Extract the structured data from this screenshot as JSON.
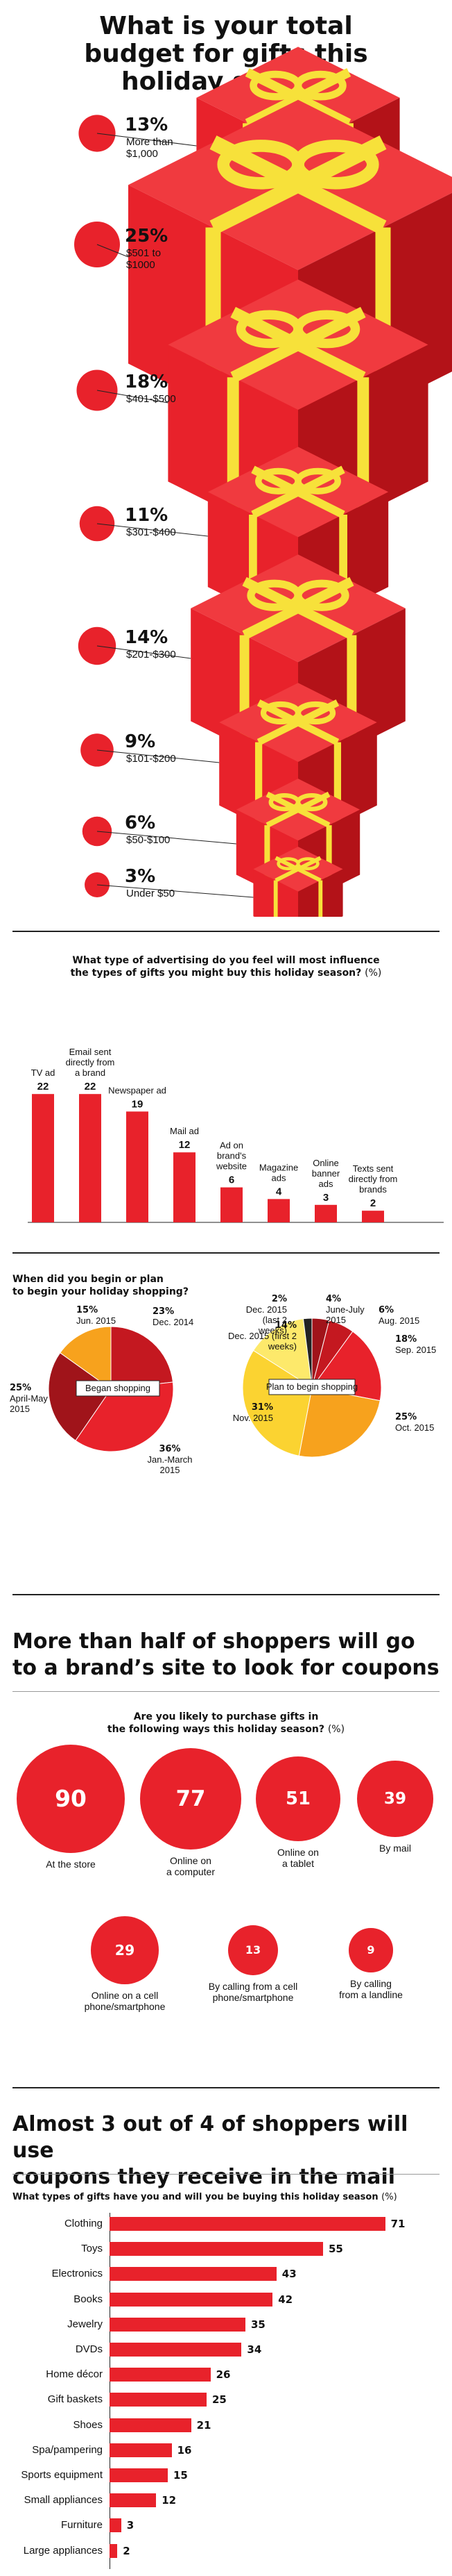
{
  "section1": {
    "title_lines": [
      "What is your total",
      "budget for gifts this",
      "holiday season"
    ]
  },
  "colors": {
    "red": "#e8222b",
    "dark_red": "#b31218",
    "ribbon": "#f7e13a",
    "orange": "#f7a21d",
    "yellow": "#fbd331"
  },
  "chart_data": [
    {
      "type": "bar",
      "variant": "bubble-list",
      "title": "What is your total budget for gifts this holiday season",
      "categories": [
        "More than $1,000",
        "$501 to $1000",
        "$401-$500",
        "$301-$400",
        "$201-$300",
        "$101-$200",
        "$50-$100",
        "Under $50"
      ],
      "values": [
        13,
        25,
        18,
        11,
        14,
        9,
        6,
        3
      ],
      "value_labels": [
        "13%",
        "25%",
        "18%",
        "11%",
        "14%",
        "9%",
        "6%",
        "3%"
      ],
      "sublabels": [
        [
          "More than",
          "$1,000"
        ],
        [
          "$501 to",
          "$1000"
        ],
        [
          "$401-$500"
        ],
        [
          "$301-$400"
        ],
        [
          "$201-$300"
        ],
        [
          "$101-$200"
        ],
        [
          "$50-$100"
        ],
        [
          "Under $50"
        ]
      ]
    },
    {
      "type": "bar",
      "title_lines": [
        "What type of advertising do you feel will most influence",
        "the types of gifts you might buy this holiday season?"
      ],
      "unit": "(%)",
      "categories": [
        "TV ad",
        "Email sent directly from a brand",
        "Newspaper ad",
        "Mail ad",
        "Ad on brand's website",
        "Magazine ads",
        "Online banner ads",
        "Texts sent directly from brands"
      ],
      "category_lines": [
        [
          "TV ad"
        ],
        [
          "Email sent",
          "directly from",
          "a brand"
        ],
        [
          "Newspaper ad"
        ],
        [
          "Mail ad"
        ],
        [
          "Ad on",
          "brand's",
          "website"
        ],
        [
          "Magazine",
          "ads"
        ],
        [
          "Online",
          "banner",
          "ads"
        ],
        [
          "Texts sent",
          "directly from",
          "brands"
        ]
      ],
      "values": [
        22,
        22,
        19,
        12,
        6,
        4,
        3,
        2
      ]
    },
    {
      "type": "pie",
      "title_lines": [
        "When did you begin or plan",
        "to begin your holiday shopping?"
      ],
      "center_label": "Began shopping",
      "slices": [
        {
          "label": "Dec. 2014",
          "value": 23,
          "text": "23%"
        },
        {
          "label": "Jan.-March 2015",
          "value": 36,
          "text": "36%"
        },
        {
          "label": "April-May 2015",
          "value": 25,
          "text": "25%"
        },
        {
          "label": "Jun. 2015",
          "value": 15,
          "text": "15%"
        }
      ]
    },
    {
      "type": "pie",
      "center_label": "Plan to begin shopping",
      "slices": [
        {
          "label": "June-July 2015",
          "value": 4,
          "text": "4%"
        },
        {
          "label": "Aug. 2015",
          "value": 6,
          "text": "6%"
        },
        {
          "label": "Sep. 2015",
          "value": 18,
          "text": "18%"
        },
        {
          "label": "Oct. 2015",
          "value": 25,
          "text": "25%"
        },
        {
          "label": "Nov. 2015",
          "value": 31,
          "text": "31%"
        },
        {
          "label": "Dec. 2015 (first 2 weeks)",
          "value": 14,
          "text": "14%"
        },
        {
          "label": "Dec. 2015 (last 2 weeks)",
          "value": 2,
          "text": "2%"
        }
      ]
    },
    {
      "type": "bar",
      "variant": "bubbles",
      "title_lines": [
        "Are you likely to purchase gifts in",
        "the following ways this holiday season?"
      ],
      "unit": "(%)",
      "categories": [
        "At the store",
        "Online on a computer",
        "Online on a tablet",
        "By mail",
        "Online on a cell phone/smartphone",
        "By calling from a cell phone/smartphone",
        "By calling from a landline"
      ],
      "category_lines": [
        [
          "At the store"
        ],
        [
          "Online on",
          "a computer"
        ],
        [
          "Online on",
          "a tablet"
        ],
        [
          "By mail"
        ],
        [
          "Online on a cell",
          "phone/smartphone"
        ],
        [
          "By calling from a cell",
          "phone/smartphone"
        ],
        [
          "By calling",
          "from a landline"
        ]
      ],
      "values": [
        90,
        77,
        51,
        39,
        29,
        13,
        9
      ]
    },
    {
      "type": "bar",
      "orientation": "horizontal",
      "title": "What types of gifts have you and will you be buying this holiday season",
      "unit": "(%)",
      "categories": [
        "Clothing",
        "Toys",
        "Electronics",
        "Books",
        "Jewelry",
        "DVDs",
        "Home décor",
        "Gift baskets",
        "Shoes",
        "Spa/pampering",
        "Sports equipment",
        "Small appliances",
        "Furniture",
        "Large appliances"
      ],
      "values": [
        71,
        55,
        43,
        42,
        35,
        34,
        26,
        25,
        21,
        16,
        15,
        12,
        3,
        2
      ]
    }
  ],
  "headline2_lines": [
    "More than half of shoppers will go",
    "to a brand’s site to look for coupons"
  ],
  "headline3_lines": [
    "Almost 3 out of 4 of shoppers will use",
    "coupons they receive in the mail"
  ]
}
